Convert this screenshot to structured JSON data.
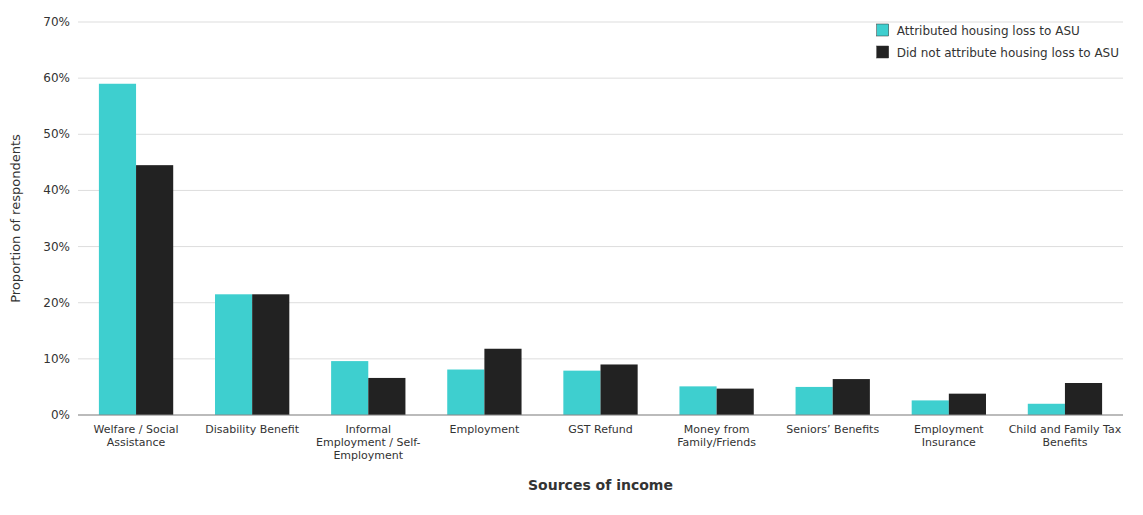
{
  "chart_data": {
    "type": "bar",
    "xlabel": "Sources of income",
    "ylabel": "Proportion of respondents",
    "categories": [
      "Welfare / Social\nAssistance",
      "Disability Benefit",
      "Informal\nEmployment / Self-\nEmployment",
      "Employment",
      "GST Refund",
      "Money from\nFamily/Friends",
      "Seniors’ Benefits",
      "Employment\nInsurance",
      "Child and Family Tax\nBenefits"
    ],
    "series": [
      {
        "name": "Attributed housing loss to ASU",
        "color": "#3ECFCF",
        "values": [
          0.59,
          0.215,
          0.096,
          0.081,
          0.079,
          0.051,
          0.05,
          0.026,
          0.02
        ]
      },
      {
        "name": "Did not attribute housing loss to ASU",
        "color": "#222222",
        "values": [
          0.445,
          0.215,
          0.066,
          0.118,
          0.09,
          0.047,
          0.064,
          0.038,
          0.057
        ]
      }
    ],
    "ylim": [
      0,
      0.7
    ],
    "yticks": [
      {
        "value": 0.0,
        "label": "0%"
      },
      {
        "value": 0.1,
        "label": "10%"
      },
      {
        "value": 0.2,
        "label": "20%"
      },
      {
        "value": 0.3,
        "label": "30%"
      },
      {
        "value": 0.4,
        "label": "40%"
      },
      {
        "value": 0.5,
        "label": "50%"
      },
      {
        "value": 0.6,
        "label": "60%"
      },
      {
        "value": 0.7,
        "label": "70%"
      }
    ],
    "grid": true,
    "legend": "upper right"
  }
}
